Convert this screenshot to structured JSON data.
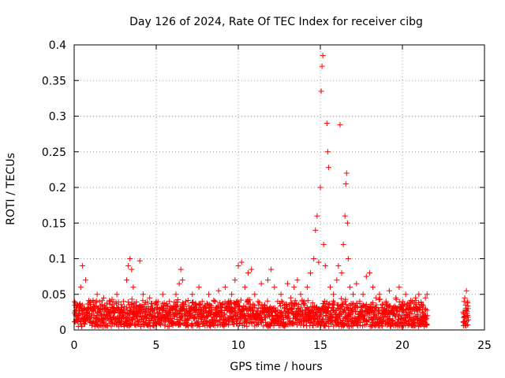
{
  "chart_data": {
    "type": "scatter",
    "title": "Day 126 of 2024, Rate Of TEC Index for receiver cibg",
    "xlabel": "GPS time / hours",
    "ylabel": "ROTI / TECUs",
    "xlim": [
      0,
      25
    ],
    "ylim": [
      0,
      0.4
    ],
    "x_ticks": [
      0,
      5,
      10,
      15,
      20,
      25
    ],
    "x_tick_labels": [
      "0",
      "5",
      "10",
      "15",
      "20",
      "25"
    ],
    "y_ticks": [
      0,
      0.05,
      0.1,
      0.15,
      0.2,
      0.25,
      0.3,
      0.35,
      0.4
    ],
    "y_tick_labels": [
      "0",
      "0.05",
      "0.1",
      "0.15",
      "0.2",
      "0.25",
      "0.3",
      "0.35",
      "0.4"
    ],
    "grid": true,
    "marker": "+",
    "color": "#ff0000",
    "series": [
      {
        "name": "ROTI",
        "points": [
          [
            0.1,
            0.02
          ],
          [
            0.2,
            0.035
          ],
          [
            0.3,
            0.015
          ],
          [
            0.4,
            0.06
          ],
          [
            0.5,
            0.09
          ],
          [
            0.6,
            0.03
          ],
          [
            0.7,
            0.07
          ],
          [
            0.8,
            0.025
          ],
          [
            1.0,
            0.04
          ],
          [
            1.2,
            0.02
          ],
          [
            1.4,
            0.05
          ],
          [
            1.6,
            0.03
          ],
          [
            1.8,
            0.045
          ],
          [
            2.0,
            0.02
          ],
          [
            2.2,
            0.04
          ],
          [
            2.4,
            0.03
          ],
          [
            2.6,
            0.05
          ],
          [
            2.8,
            0.025
          ],
          [
            3.0,
            0.04
          ],
          [
            3.2,
            0.07
          ],
          [
            3.3,
            0.09
          ],
          [
            3.4,
            0.1
          ],
          [
            3.5,
            0.085
          ],
          [
            3.6,
            0.06
          ],
          [
            3.8,
            0.035
          ],
          [
            4.0,
            0.097
          ],
          [
            4.2,
            0.05
          ],
          [
            4.4,
            0.03
          ],
          [
            4.6,
            0.045
          ],
          [
            4.8,
            0.02
          ],
          [
            5.0,
            0.04
          ],
          [
            5.2,
            0.03
          ],
          [
            5.4,
            0.05
          ],
          [
            5.6,
            0.025
          ],
          [
            5.8,
            0.04
          ],
          [
            6.0,
            0.03
          ],
          [
            6.2,
            0.05
          ],
          [
            6.4,
            0.065
          ],
          [
            6.5,
            0.085
          ],
          [
            6.6,
            0.07
          ],
          [
            6.8,
            0.04
          ],
          [
            7.0,
            0.03
          ],
          [
            7.2,
            0.05
          ],
          [
            7.4,
            0.035
          ],
          [
            7.6,
            0.06
          ],
          [
            7.8,
            0.04
          ],
          [
            8.0,
            0.03
          ],
          [
            8.2,
            0.05
          ],
          [
            8.4,
            0.025
          ],
          [
            8.6,
            0.04
          ],
          [
            8.8,
            0.055
          ],
          [
            9.0,
            0.035
          ],
          [
            9.2,
            0.06
          ],
          [
            9.4,
            0.04
          ],
          [
            9.6,
            0.05
          ],
          [
            9.8,
            0.07
          ],
          [
            10.0,
            0.09
          ],
          [
            10.2,
            0.095
          ],
          [
            10.4,
            0.06
          ],
          [
            10.6,
            0.08
          ],
          [
            10.8,
            0.085
          ],
          [
            11.0,
            0.05
          ],
          [
            11.2,
            0.04
          ],
          [
            11.4,
            0.065
          ],
          [
            11.6,
            0.035
          ],
          [
            11.8,
            0.07
          ],
          [
            12.0,
            0.085
          ],
          [
            12.2,
            0.06
          ],
          [
            12.4,
            0.04
          ],
          [
            12.6,
            0.05
          ],
          [
            12.8,
            0.03
          ],
          [
            13.0,
            0.065
          ],
          [
            13.2,
            0.045
          ],
          [
            13.4,
            0.06
          ],
          [
            13.6,
            0.07
          ],
          [
            13.8,
            0.05
          ],
          [
            14.0,
            0.04
          ],
          [
            14.2,
            0.06
          ],
          [
            14.4,
            0.08
          ],
          [
            14.6,
            0.1
          ],
          [
            14.7,
            0.14
          ],
          [
            14.8,
            0.16
          ],
          [
            14.9,
            0.095
          ],
          [
            15.0,
            0.2
          ],
          [
            15.05,
            0.335
          ],
          [
            15.1,
            0.37
          ],
          [
            15.15,
            0.385
          ],
          [
            15.2,
            0.12
          ],
          [
            15.3,
            0.09
          ],
          [
            15.4,
            0.29
          ],
          [
            15.45,
            0.25
          ],
          [
            15.5,
            0.228
          ],
          [
            15.6,
            0.06
          ],
          [
            15.8,
            0.05
          ],
          [
            16.0,
            0.07
          ],
          [
            16.1,
            0.09
          ],
          [
            16.2,
            0.288
          ],
          [
            16.3,
            0.08
          ],
          [
            16.4,
            0.12
          ],
          [
            16.5,
            0.16
          ],
          [
            16.55,
            0.205
          ],
          [
            16.6,
            0.22
          ],
          [
            16.65,
            0.15
          ],
          [
            16.7,
            0.1
          ],
          [
            16.8,
            0.06
          ],
          [
            17.0,
            0.05
          ],
          [
            17.2,
            0.065
          ],
          [
            17.4,
            0.04
          ],
          [
            17.6,
            0.05
          ],
          [
            17.8,
            0.075
          ],
          [
            18.0,
            0.08
          ],
          [
            18.2,
            0.06
          ],
          [
            18.4,
            0.045
          ],
          [
            18.6,
            0.05
          ],
          [
            18.8,
            0.035
          ],
          [
            19.0,
            0.04
          ],
          [
            19.2,
            0.055
          ],
          [
            19.4,
            0.03
          ],
          [
            19.6,
            0.045
          ],
          [
            19.8,
            0.06
          ],
          [
            20.0,
            0.035
          ],
          [
            20.2,
            0.05
          ],
          [
            20.4,
            0.03
          ],
          [
            20.6,
            0.04
          ],
          [
            20.8,
            0.045
          ],
          [
            21.0,
            0.05
          ],
          [
            21.2,
            0.035
          ],
          [
            21.4,
            0.045
          ],
          [
            21.5,
            0.05
          ],
          [
            23.7,
            0.025
          ],
          [
            23.8,
            0.045
          ],
          [
            23.85,
            0.035
          ],
          [
            23.9,
            0.055
          ],
          [
            23.95,
            0.04
          ],
          [
            24.0,
            0.03
          ]
        ],
        "band": {
          "segments": [
            [
              0.0,
              21.5
            ],
            [
              23.7,
              24.0
            ]
          ],
          "y_low": 0.005,
          "y_high": 0.045
        }
      }
    ]
  }
}
